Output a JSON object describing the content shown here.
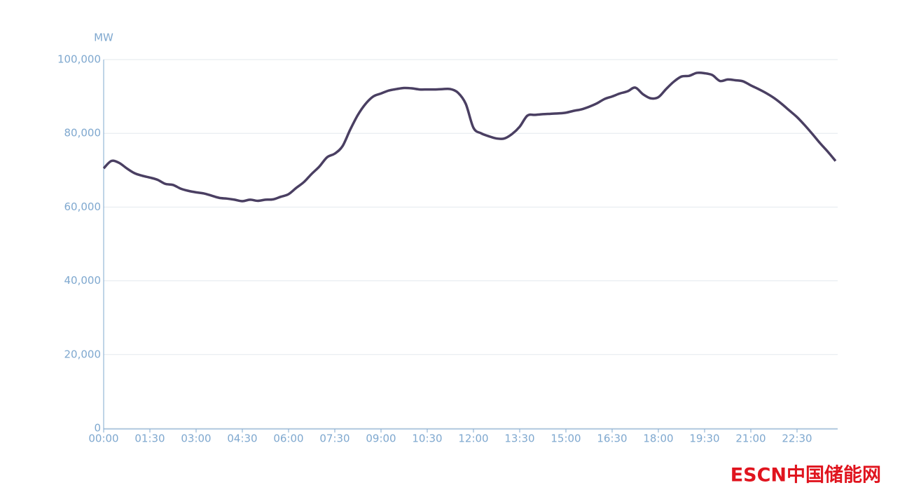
{
  "chart_data": {
    "type": "line",
    "y_axis_label": "MW",
    "categories": [
      "00:00",
      null,
      null,
      null,
      null,
      null,
      "01:30",
      null,
      null,
      null,
      null,
      null,
      "03:00",
      null,
      null,
      null,
      null,
      null,
      "04:30",
      null,
      null,
      null,
      null,
      null,
      "06:00",
      null,
      null,
      null,
      null,
      null,
      "07:30",
      null,
      null,
      null,
      null,
      null,
      "09:00",
      null,
      null,
      null,
      null,
      null,
      "10:30",
      null,
      null,
      null,
      null,
      null,
      "12:00",
      null,
      null,
      null,
      null,
      null,
      "13:30",
      null,
      null,
      null,
      null,
      null,
      "15:00",
      null,
      null,
      null,
      null,
      null,
      "16:30",
      null,
      null,
      null,
      null,
      null,
      "18:00",
      null,
      null,
      null,
      null,
      null,
      "19:30",
      null,
      null,
      null,
      null,
      null,
      "21:00",
      null,
      null,
      null,
      null,
      null,
      "22:30",
      null,
      null,
      null,
      null,
      null
    ],
    "values": [
      70500,
      72500,
      72000,
      70500,
      69200,
      68500,
      68000,
      67400,
      66300,
      66000,
      65000,
      64400,
      64000,
      63700,
      63100,
      62500,
      62300,
      62000,
      61600,
      62000,
      61700,
      62000,
      62100,
      62800,
      63500,
      65200,
      66800,
      69000,
      71000,
      73500,
      74500,
      76500,
      81000,
      85000,
      88000,
      90000,
      90800,
      91600,
      92000,
      92300,
      92200,
      91900,
      91900,
      91900,
      92000,
      92000,
      91000,
      88000,
      81500,
      80000,
      79200,
      78600,
      78600,
      79800,
      81800,
      84800,
      85000,
      85200,
      85300,
      85400,
      85600,
      86100,
      86500,
      87200,
      88100,
      89300,
      90000,
      90800,
      91400,
      92400,
      90600,
      89500,
      89800,
      92000,
      94000,
      95400,
      95600,
      96400,
      96300,
      95800,
      94200,
      94600,
      94400,
      94100,
      93000,
      92000,
      90900,
      89600,
      88000,
      86200,
      84400,
      82200,
      79800,
      77300,
      75000,
      72500
    ],
    "color": "#4a3f62",
    "ylim": [
      0,
      100000
    ],
    "yticks": [
      0,
      {
        "value": 20000,
        "label": "20,000"
      },
      {
        "value": 40000,
        "label": "40,000"
      },
      {
        "value": 60000,
        "label": "60,000"
      },
      {
        "value": 80000,
        "label": "80,000"
      },
      {
        "value": 100000,
        "label": "100,000"
      }
    ],
    "grid": true,
    "watermark": "ESCN中国储能网"
  }
}
